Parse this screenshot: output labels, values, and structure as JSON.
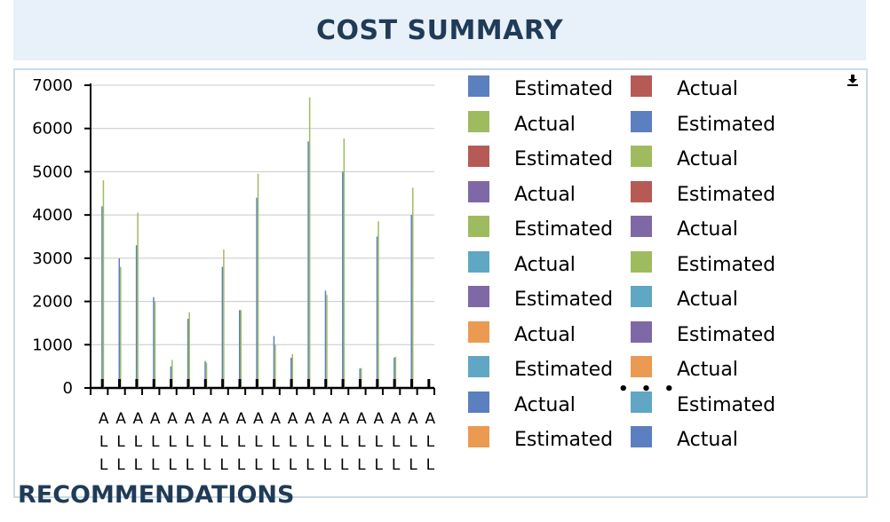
{
  "header": {
    "title": "COST SUMMARY"
  },
  "section": {
    "recommendations_title": "RECOMMENDATIONS"
  },
  "download_icon": "download-icon",
  "legend_more": "• • •",
  "colors": {
    "blue": "#5b7fbf",
    "red": "#b65a55",
    "green": "#9fbb60",
    "purple": "#7f68a6",
    "teal": "#5fa7c3",
    "orange": "#eb9a52",
    "grid": "#c8c8c8",
    "axis": "#000000"
  },
  "legend": {
    "items": [
      {
        "label": "Estimated",
        "color": "#5b7fbf"
      },
      {
        "label": "Actual",
        "color": "#b65a55"
      },
      {
        "label": "Actual",
        "color": "#9fbb60"
      },
      {
        "label": "Estimated",
        "color": "#5b7fbf"
      },
      {
        "label": "Estimated",
        "color": "#b65a55"
      },
      {
        "label": "Actual",
        "color": "#9fbb60"
      },
      {
        "label": "Actual",
        "color": "#7f68a6"
      },
      {
        "label": "Estimated",
        "color": "#b65a55"
      },
      {
        "label": "Estimated",
        "color": "#9fbb60"
      },
      {
        "label": "Actual",
        "color": "#7f68a6"
      },
      {
        "label": "Actual",
        "color": "#5fa7c3"
      },
      {
        "label": "Estimated",
        "color": "#9fbb60"
      },
      {
        "label": "Estimated",
        "color": "#7f68a6"
      },
      {
        "label": "Actual",
        "color": "#5fa7c3"
      },
      {
        "label": "Actual",
        "color": "#eb9a52"
      },
      {
        "label": "Estimated",
        "color": "#7f68a6"
      },
      {
        "label": "Estimated",
        "color": "#5fa7c3"
      },
      {
        "label": "Actual",
        "color": "#eb9a52"
      },
      {
        "label": "Actual",
        "color": "#5b7fbf"
      },
      {
        "label": "Estimated",
        "color": "#5fa7c3"
      },
      {
        "label": "Estimated",
        "color": "#eb9a52"
      },
      {
        "label": "Actual",
        "color": "#5b7fbf"
      }
    ]
  },
  "chart_data": {
    "type": "bar",
    "title": "",
    "xlabel": "",
    "ylabel": "",
    "ylim": [
      0,
      7000
    ],
    "yticks": [
      0,
      1000,
      2000,
      3000,
      4000,
      5000,
      6000,
      7000
    ],
    "grid": true,
    "legend_position": "right",
    "category_label": "ALL",
    "categories": [
      "ALL",
      "ALL",
      "ALL",
      "ALL",
      "ALL",
      "ALL",
      "ALL",
      "ALL",
      "ALL",
      "ALL",
      "ALL",
      "ALL",
      "ALL",
      "ALL",
      "ALL",
      "ALL",
      "ALL",
      "ALL",
      "ALL",
      "ALL"
    ],
    "series": [
      {
        "name": "Estimated",
        "color": "#5b7fbf",
        "values": [
          4200,
          3000,
          3300,
          2100,
          500,
          1600,
          620,
          2800,
          1800,
          4400,
          1200,
          700,
          5700,
          2250,
          5000,
          450,
          3500,
          700,
          4000,
          0
        ]
      },
      {
        "name": "Actual",
        "color": "#9fbb60",
        "values": [
          4800,
          2800,
          4050,
          2000,
          650,
          1750,
          580,
          3200,
          1800,
          4950,
          1000,
          780,
          6720,
          2150,
          5770,
          460,
          3850,
          720,
          4630,
          0
        ]
      }
    ]
  }
}
